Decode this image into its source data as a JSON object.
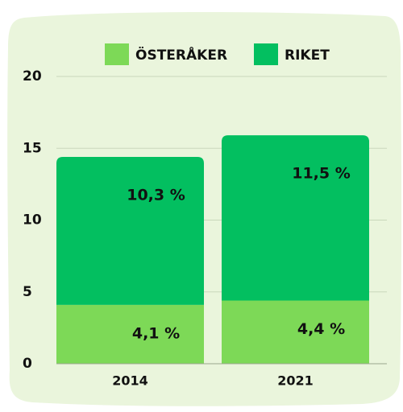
{
  "chart_data": {
    "type": "bar",
    "stacked": true,
    "categories": [
      "2014",
      "2021"
    ],
    "series": [
      {
        "name": "ÖSTERÅKER",
        "color": "#7dd957",
        "values": [
          4.1,
          4.4
        ],
        "value_labels": [
          "4,1 %",
          "4,4 %"
        ]
      },
      {
        "name": "RIKET",
        "color": "#03bf60",
        "values": [
          10.3,
          11.5
        ],
        "value_labels": [
          "10,3 %",
          "11,5 %"
        ]
      }
    ],
    "ylim": [
      0,
      20
    ],
    "yticks": [
      0,
      5,
      10,
      15,
      20
    ],
    "grid": true
  }
}
